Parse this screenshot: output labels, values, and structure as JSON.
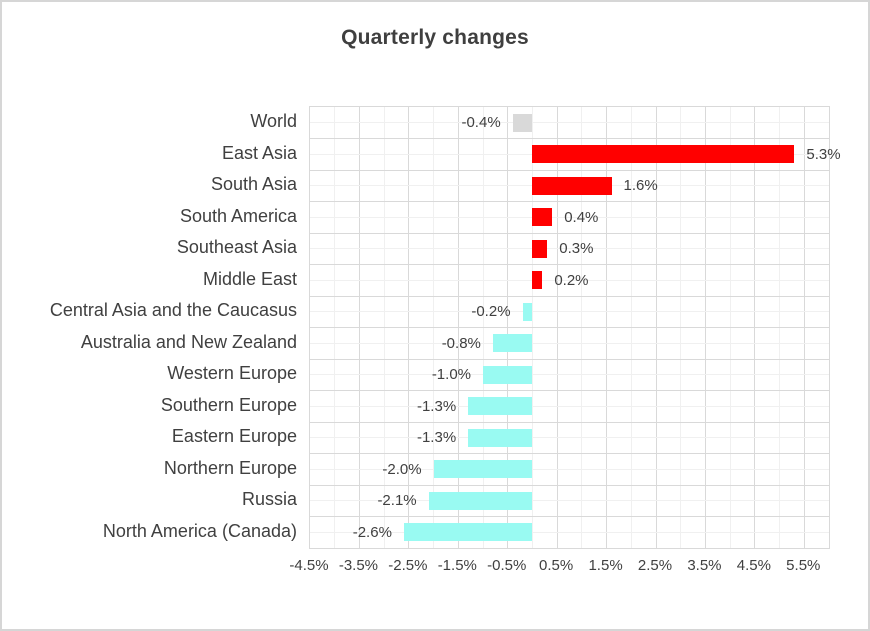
{
  "colors": {
    "positive_bar": "#ff0000",
    "negative_bar": "#99faf2",
    "world_bar": "#d9d9d9",
    "text": "#404040",
    "grid_major": "#d9d9d9",
    "grid_minor": "#f0f0f0",
    "frame_border": "#d6d6d6"
  },
  "chart_data": {
    "type": "bar",
    "orientation": "horizontal",
    "title": "Quarterly changes",
    "categories": [
      "World",
      "East Asia",
      "South Asia",
      "South America",
      "Southeast Asia",
      "Middle East",
      "Central Asia and the Caucasus",
      "Australia and New Zealand",
      "Western Europe",
      "Southern Europe",
      "Eastern Europe",
      "Northern Europe",
      "Russia",
      "North America (Canada)"
    ],
    "values": [
      -0.4,
      5.3,
      1.6,
      0.4,
      0.3,
      0.2,
      -0.2,
      -0.8,
      -1.0,
      -1.3,
      -1.3,
      -2.0,
      -2.1,
      -2.6
    ],
    "value_labels": [
      "-0.4%",
      "5.3%",
      "1.6%",
      "0.4%",
      "0.3%",
      "0.2%",
      "-0.2%",
      "-0.8%",
      "-1.0%",
      "-1.3%",
      "-1.3%",
      "-2.0%",
      "-2.1%",
      "-2.6%"
    ],
    "bar_colors": [
      "#d9d9d9",
      "#ff0000",
      "#ff0000",
      "#ff0000",
      "#ff0000",
      "#ff0000",
      "#99faf2",
      "#99faf2",
      "#99faf2",
      "#99faf2",
      "#99faf2",
      "#99faf2",
      "#99faf2",
      "#99faf2"
    ],
    "xlim": [
      -4.5,
      6.0
    ],
    "x_major_unit": 1.0,
    "x_minor_unit": 0.5,
    "x_tick_labels": [
      "-4.5%",
      "-3.5%",
      "-2.5%",
      "-1.5%",
      "-0.5%",
      "0.5%",
      "1.5%",
      "2.5%",
      "3.5%",
      "4.5%",
      "5.5%"
    ],
    "grid": true,
    "legend_position": "none",
    "xlabel": "",
    "ylabel": ""
  }
}
